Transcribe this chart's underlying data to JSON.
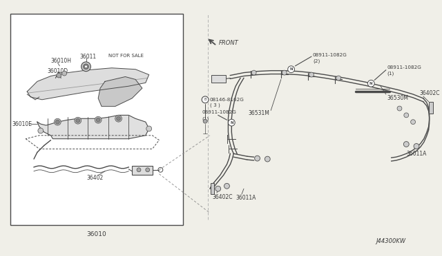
{
  "bg_color": "#f0efe8",
  "line_color": "#4a4a4a",
  "label_color": "#3a3a3a",
  "white": "#ffffff",
  "diagram_id": "J44300KW",
  "left_box_label": "36010",
  "front_text": "FRONT"
}
